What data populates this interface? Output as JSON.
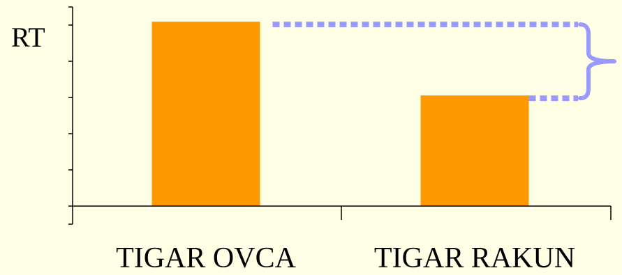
{
  "colors": {
    "background": "#ffffe5",
    "bar": "#ff9900",
    "annotation": "#9999ff",
    "axis": "#000000"
  },
  "chart_data": {
    "type": "bar",
    "categories": [
      "TIGAR OVCA",
      "TIGAR RAKUN"
    ],
    "values": [
      100,
      60
    ],
    "ylabel": "RT",
    "ylim": [
      0,
      108
    ],
    "y_ticks": 5,
    "grid": false,
    "annotation": {
      "type": "difference-brace",
      "from_category": 0,
      "to_category": 1
    }
  }
}
